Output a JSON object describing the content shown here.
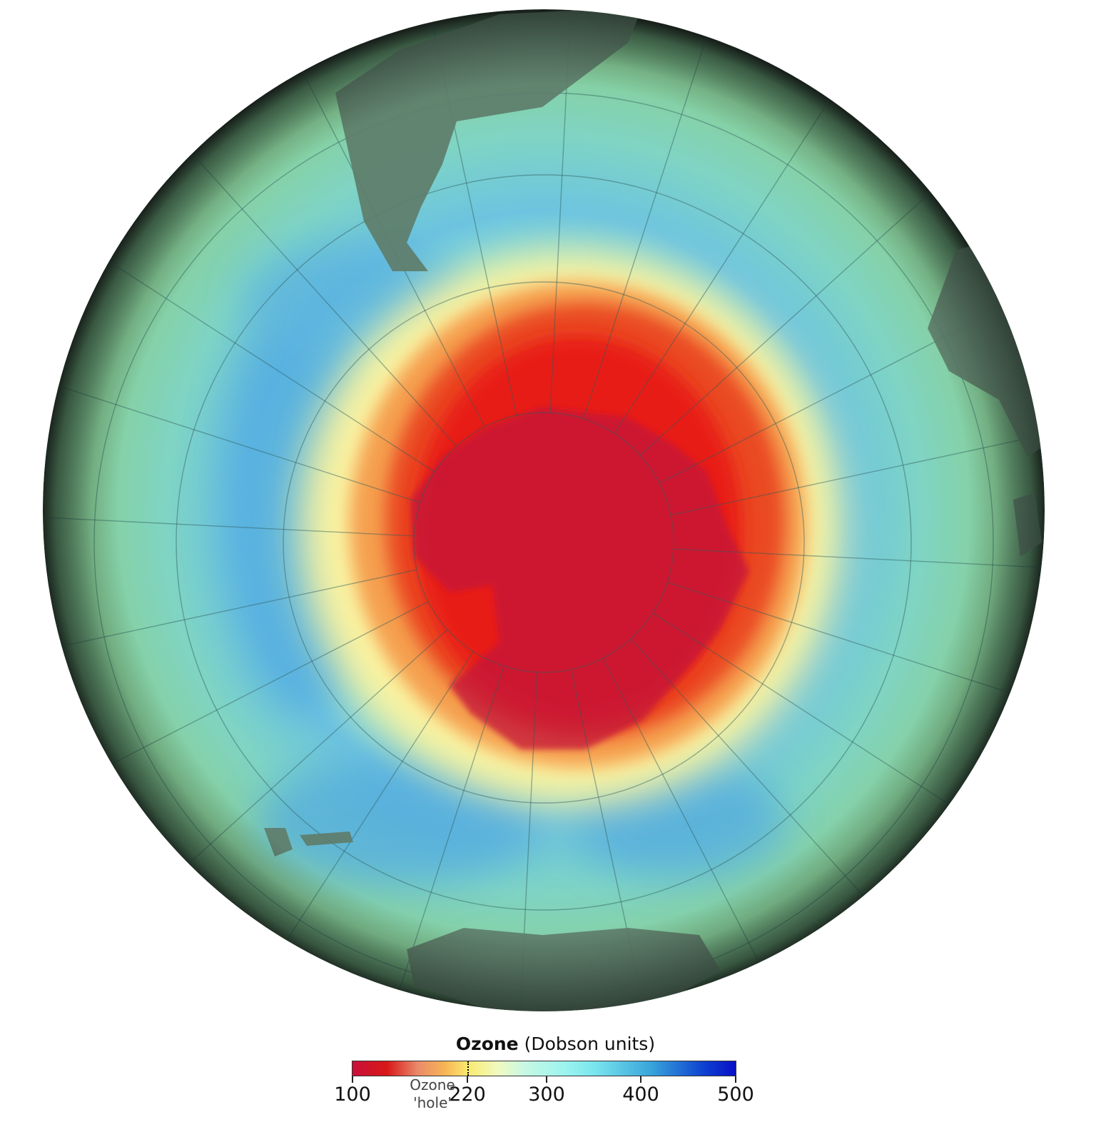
{
  "legend": {
    "title_bold": "Ozone",
    "title_rest": "(Dobson units)",
    "ticks": [
      "100",
      "220",
      "300",
      "400",
      "500"
    ],
    "hole_label_line1": "Ozone",
    "hole_label_line2": "'hole'",
    "threshold": 220,
    "range": [
      100,
      500
    ],
    "colors": [
      "#c8103a",
      "#d81818",
      "#f7b455",
      "#fbe96e",
      "#9ef4ee",
      "#38a4da",
      "#0a0fc8"
    ]
  },
  "map": {
    "projection": "orthographic, south polar view",
    "colors": {
      "ocean_outer": "#86d3a0",
      "blue_ring": "#5cb6dc",
      "hole_core": "#c8103a",
      "hole": "#e82018",
      "land": "#5e7d6a"
    }
  }
}
